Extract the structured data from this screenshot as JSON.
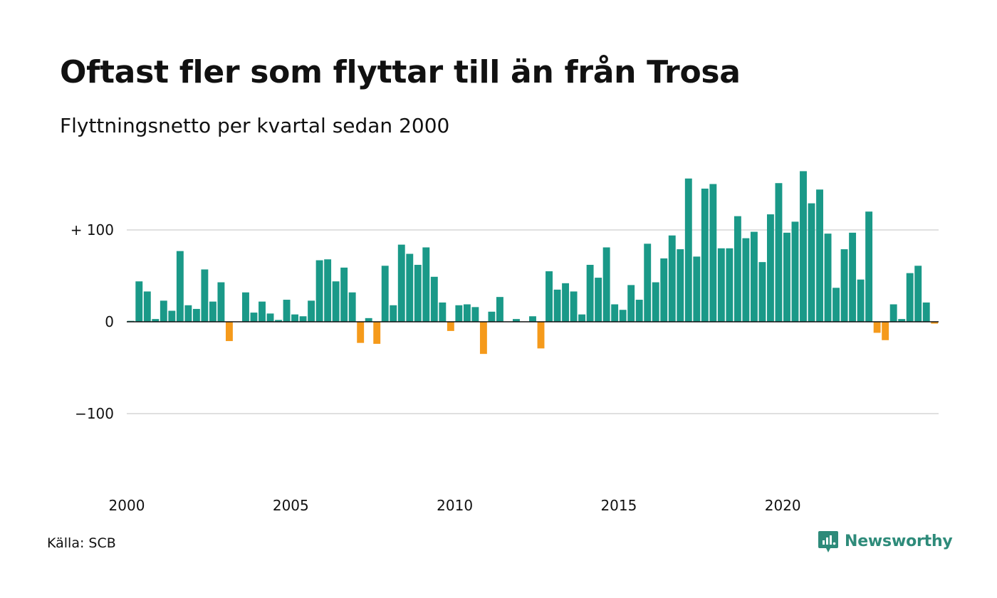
{
  "title": "Oftast fler som flyttar till än från Trosa",
  "subtitle": "Flyttningsnetto per kvartal sedan 2000",
  "source": "Källa: SCB",
  "brand": {
    "name": "Newsworthy",
    "icon": "newsworthy-logo-icon"
  },
  "colors": {
    "positive": "#1a9988",
    "negative": "#f59a1b",
    "grid": "#e0e0e0",
    "zero": "#111111",
    "brand": "#2e8b7a"
  },
  "chart_data": {
    "type": "bar",
    "title": "Oftast fler som flyttar till än från Trosa",
    "subtitle": "Flyttningsnetto per kvartal sedan 2000",
    "xlabel": "",
    "ylabel": "",
    "x_start": 2000,
    "periods_per_year": 4,
    "values": [
      1,
      44,
      33,
      3,
      23,
      12,
      77,
      18,
      14,
      57,
      22,
      43,
      -21,
      0,
      32,
      10,
      22,
      9,
      2,
      24,
      8,
      6,
      23,
      67,
      68,
      44,
      59,
      32,
      -23,
      4,
      -24,
      61,
      18,
      84,
      74,
      62,
      81,
      49,
      21,
      -10,
      18,
      19,
      16,
      -35,
      11,
      27,
      0,
      3,
      0,
      6,
      -29,
      55,
      35,
      42,
      33,
      8,
      62,
      48,
      81,
      19,
      13,
      40,
      24,
      85,
      43,
      69,
      94,
      79,
      156,
      71,
      145,
      150,
      80,
      80,
      115,
      91,
      98,
      65,
      117,
      151,
      97,
      109,
      164,
      129,
      144,
      96,
      37,
      79,
      97,
      46,
      120,
      -12,
      -20,
      19,
      3,
      53,
      61,
      21,
      -2
    ],
    "ylim": [
      -180,
      180
    ],
    "yticks": [
      {
        "value": 100,
        "label": "+ 100"
      },
      {
        "value": 0,
        "label": "0"
      },
      {
        "value": -100,
        "label": "−100"
      }
    ],
    "xticks": [
      {
        "value": 2000,
        "label": "2000"
      },
      {
        "value": 2005,
        "label": "2005"
      },
      {
        "value": 2010,
        "label": "2010"
      },
      {
        "value": 2015,
        "label": "2015"
      },
      {
        "value": 2020,
        "label": "2020"
      }
    ],
    "grid": true,
    "legend": "none"
  }
}
